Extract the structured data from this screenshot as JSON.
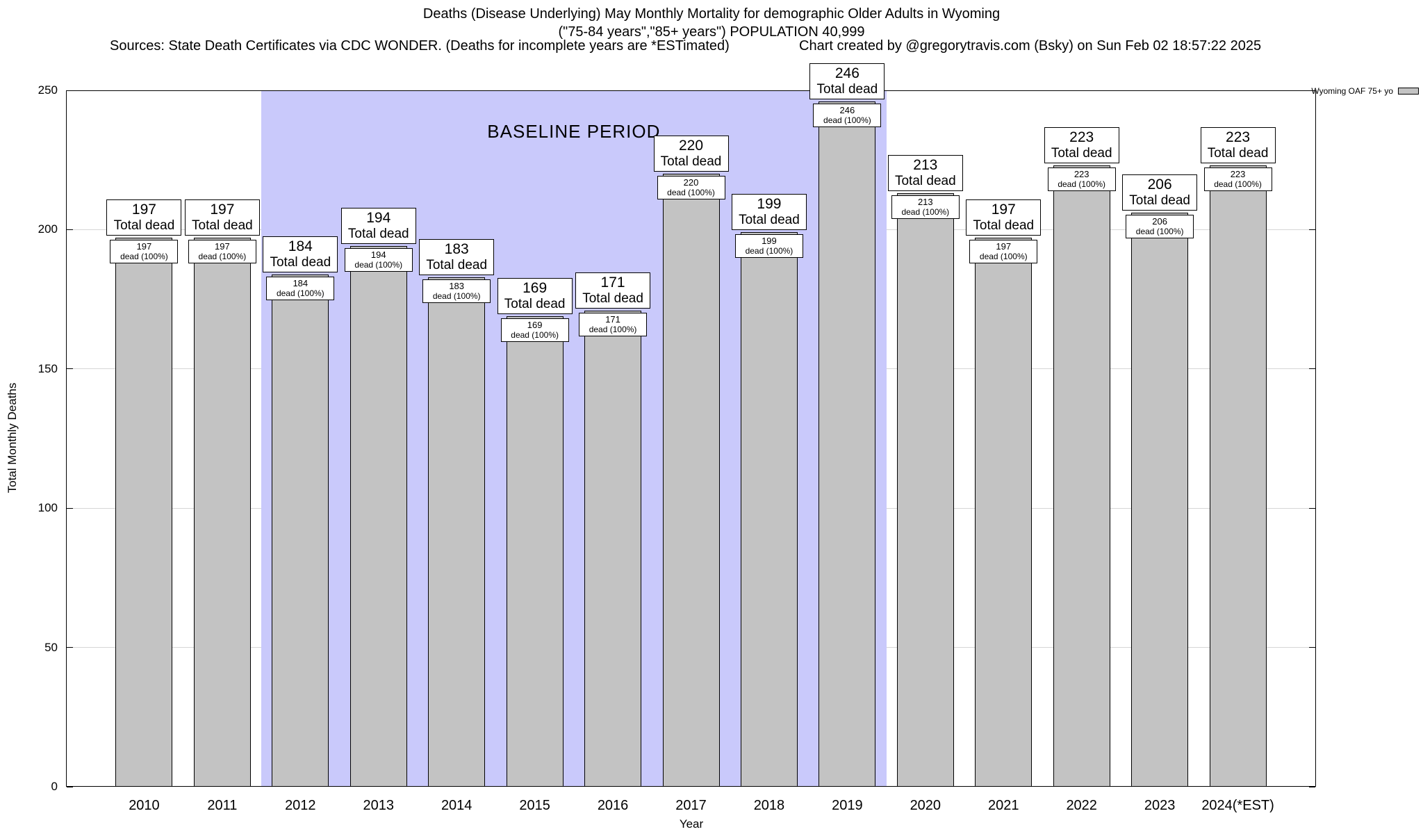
{
  "header": {
    "title_line1": "Deaths (Disease Underlying) May Monthly Mortality for demographic Older Adults in Wyoming",
    "title_line2": "(\"75-84 years\",\"85+ years\") POPULATION 40,999",
    "sources": "Sources: State Death Certificates via CDC WONDER. (Deaths for incomplete years are *ESTimated)",
    "credit": "Chart created by @gregorytravis.com (Bsky) on Sun Feb 02 18:57:22 2025"
  },
  "chart_data": {
    "type": "bar",
    "title": "Deaths (Disease Underlying) May Monthly Mortality for demographic Older Adults in Wyoming",
    "xlabel": "Year",
    "ylabel": "Total Monthly Deaths",
    "ylim": [
      0,
      250
    ],
    "yticks": [
      0,
      50,
      100,
      150,
      200,
      250
    ],
    "grid": true,
    "legend_position": "top-right",
    "bar_color": "#c3c3c3",
    "categories": [
      "2010",
      "2011",
      "2012",
      "2013",
      "2014",
      "2015",
      "2016",
      "2017",
      "2018",
      "2019",
      "2020",
      "2021",
      "2022",
      "2023",
      "2024(*EST)"
    ],
    "values": [
      197,
      197,
      184,
      194,
      183,
      169,
      171,
      220,
      199,
      246,
      213,
      197,
      223,
      206,
      223
    ],
    "outer_label_suffix": "Total dead",
    "inner_label_suffix": "dead (100%)",
    "baseline": {
      "label": "BASELINE PERIOD",
      "start_category": "2012",
      "end_category": "2019",
      "color": "#c9c9fb"
    },
    "legend": [
      {
        "name": "Wyoming OAF 75+ yo"
      }
    ]
  }
}
